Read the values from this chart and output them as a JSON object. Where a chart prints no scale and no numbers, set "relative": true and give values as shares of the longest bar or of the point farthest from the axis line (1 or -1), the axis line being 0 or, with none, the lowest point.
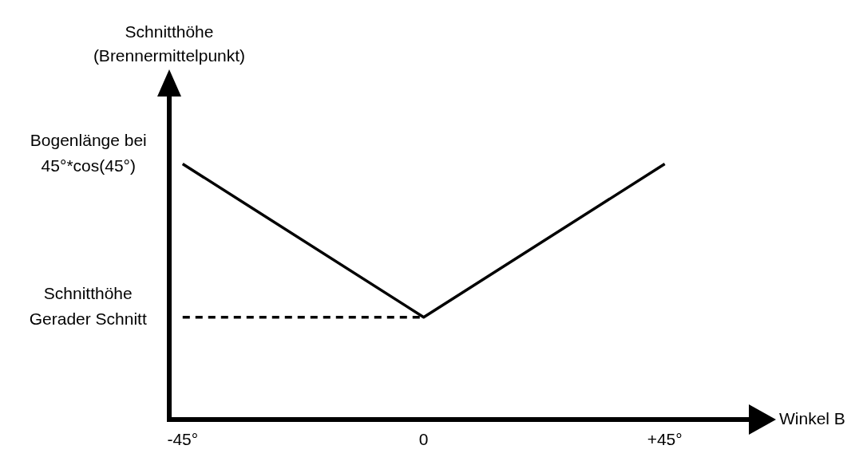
{
  "chart_data": {
    "type": "line",
    "relative": true,
    "xlabel": "Winkel B",
    "xlim": [
      -47.5,
      61
    ],
    "xticks": [
      {
        "value": -45,
        "label": "-45°"
      },
      0,
      {
        "value": 45,
        "label": "+45°"
      }
    ],
    "series": [
      {
        "color": "#000000",
        "x": [
          -45,
          0,
          45
        ],
        "values": [
          1,
          0.4,
          1
        ]
      },
      {
        "color": "#000000",
        "x": [
          -45,
          0
        ],
        "values": [
          0.4,
          0.4
        ],
        "line_style": "dashed"
      }
    ],
    "annotations": [
      "Schnitthöhe\n(Brennermittelpunkt)",
      {
        "text": "Bogenlänge bei\n45°*cos(45°)",
        "x": -45,
        "y": 1
      },
      {
        "text": "Schnitthöhe\nGerader Schnitt",
        "x": -45,
        "y": 0.4
      }
    ],
    "marker": "none",
    "grid": false,
    "legend": false
  }
}
